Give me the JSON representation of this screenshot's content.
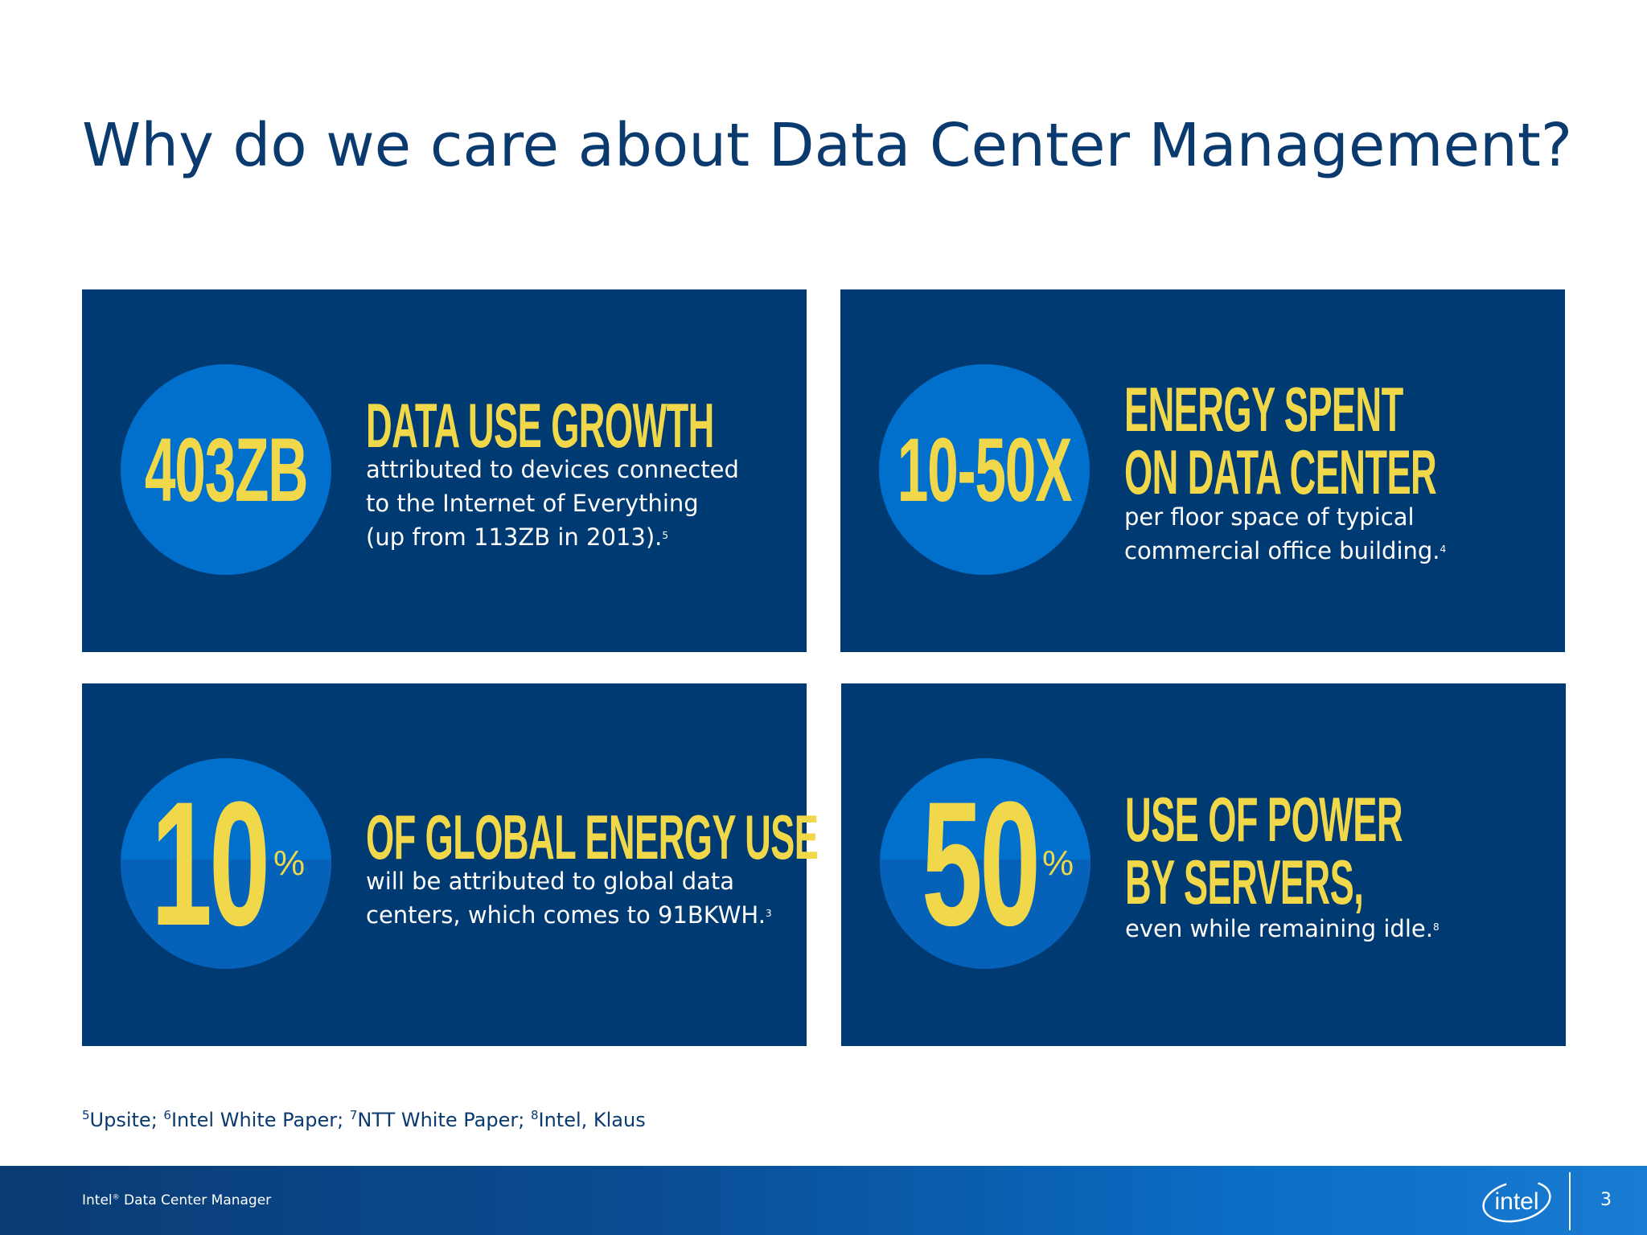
{
  "slide": {
    "title": "Why do we care about Data Center Management?"
  },
  "panels": [
    {
      "stat": "403ZB",
      "headline_lines": [
        "DATA USE GROWTH"
      ],
      "desc_lines": [
        "attributed to devices connected",
        "to the Internet of Everything",
        "(up from 113ZB in 2013)."
      ],
      "footnote_ref": "5"
    },
    {
      "stat": "10-50X",
      "headline_lines": [
        "ENERGY SPENT",
        "ON DATA CENTER"
      ],
      "desc_lines": [
        "per floor space of typical",
        "commercial office building."
      ],
      "footnote_ref": "4"
    },
    {
      "stat": "10",
      "stat_unit": "%",
      "headline_lines": [
        "OF GLOBAL ENERGY USE"
      ],
      "desc_lines": [
        "will be attributed to global data",
        "centers, which comes to 91BKWH."
      ],
      "footnote_ref": "3"
    },
    {
      "stat": "50",
      "stat_unit": "%",
      "headline_lines": [
        "USE OF POWER",
        "BY SERVERS,"
      ],
      "desc_lines": [
        "even while remaining idle."
      ],
      "footnote_ref": "8"
    }
  ],
  "footnotes": [
    {
      "num": "5",
      "text": "Upsite; "
    },
    {
      "num": "6",
      "text": "Intel White Paper; "
    },
    {
      "num": "7",
      "text": "NTT White Paper; "
    },
    {
      "num": "8",
      "text": "Intel, Klaus"
    }
  ],
  "footer": {
    "product_name": "Intel",
    "product_mark": "®",
    "product_suffix": " Data Center Manager",
    "logo_text": "intel",
    "page_number": "3"
  },
  "colors": {
    "title": "#0a3a6e",
    "panel_bg": "#003a72",
    "circle": "#0170cd",
    "accent_yellow": "#f0d84a"
  },
  "icons": {
    "logo": "intel-logo"
  }
}
